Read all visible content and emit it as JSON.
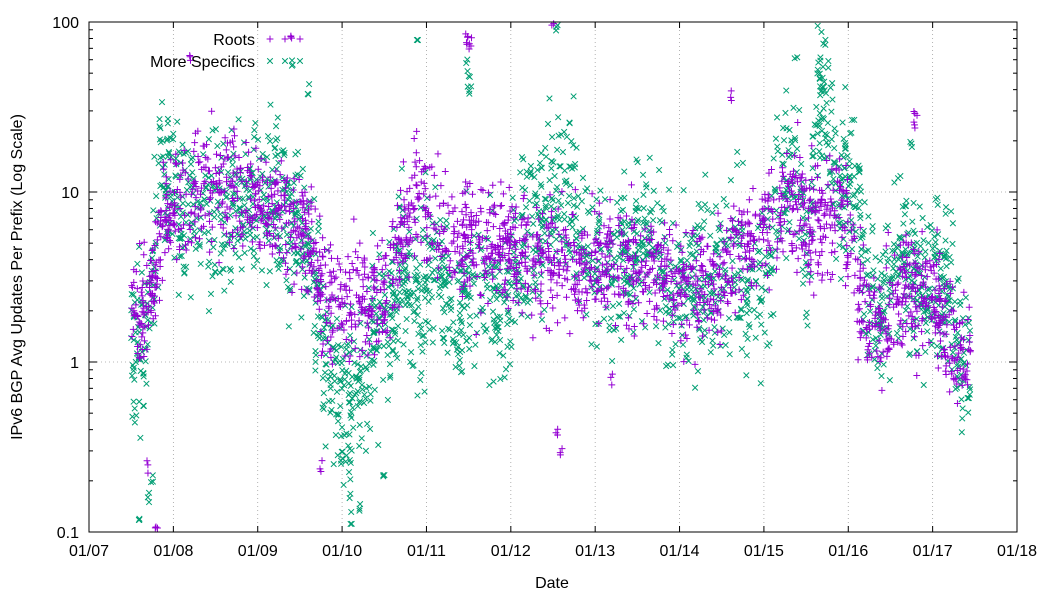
{
  "chart_data": {
    "type": "scatter",
    "title": "",
    "xlabel": "Date",
    "ylabel": "IPv6 BGP Avg Updates Per Prefix (Log Scale)",
    "yscale": "log",
    "xlim": [
      2007,
      2018
    ],
    "ylim": [
      0.1,
      100
    ],
    "x_ticks": [
      {
        "value": 2007,
        "label": "01/07"
      },
      {
        "value": 2008,
        "label": "01/08"
      },
      {
        "value": 2009,
        "label": "01/09"
      },
      {
        "value": 2010,
        "label": "01/10"
      },
      {
        "value": 2011,
        "label": "01/11"
      },
      {
        "value": 2012,
        "label": "01/12"
      },
      {
        "value": 2013,
        "label": "01/13"
      },
      {
        "value": 2014,
        "label": "01/14"
      },
      {
        "value": 2015,
        "label": "01/15"
      },
      {
        "value": 2016,
        "label": "01/16"
      },
      {
        "value": 2017,
        "label": "01/17"
      },
      {
        "value": 2018,
        "label": "01/18"
      }
    ],
    "y_ticks": [
      {
        "value": 0.1,
        "label": "0.1"
      },
      {
        "value": 1,
        "label": "1"
      },
      {
        "value": 10,
        "label": "10"
      },
      {
        "value": 100,
        "label": "100"
      }
    ],
    "grid": true,
    "legend_position": "top-left",
    "series": [
      {
        "name": "Roots",
        "marker": "plus",
        "color": "#9400d3",
        "trend": [
          [
            2007.5,
            2.2
          ],
          [
            2007.7,
            1.8
          ],
          [
            2007.85,
            6.0
          ],
          [
            2008.1,
            9.0
          ],
          [
            2008.4,
            10.0
          ],
          [
            2008.7,
            11.0
          ],
          [
            2009.0,
            9.0
          ],
          [
            2009.3,
            7.0
          ],
          [
            2009.6,
            5.0
          ],
          [
            2009.75,
            3.0
          ],
          [
            2009.9,
            2.2
          ],
          [
            2010.2,
            2.3
          ],
          [
            2010.5,
            2.5
          ],
          [
            2010.7,
            5.0
          ],
          [
            2010.9,
            10.0
          ],
          [
            2011.1,
            7.0
          ],
          [
            2011.4,
            5.0
          ],
          [
            2011.7,
            5.0
          ],
          [
            2012.0,
            5.0
          ],
          [
            2012.3,
            4.0
          ],
          [
            2012.6,
            3.6
          ],
          [
            2012.9,
            3.6
          ],
          [
            2013.2,
            3.8
          ],
          [
            2013.5,
            3.8
          ],
          [
            2013.8,
            3.6
          ],
          [
            2014.0,
            3.0
          ],
          [
            2014.3,
            2.8
          ],
          [
            2014.5,
            3.0
          ],
          [
            2014.7,
            5.0
          ],
          [
            2014.9,
            6.0
          ],
          [
            2015.1,
            7.0
          ],
          [
            2015.3,
            10.0
          ],
          [
            2015.5,
            7.0
          ],
          [
            2015.7,
            6.0
          ],
          [
            2015.9,
            9.0
          ],
          [
            2016.1,
            3.0
          ],
          [
            2016.3,
            1.8
          ],
          [
            2016.5,
            1.8
          ],
          [
            2016.7,
            3.0
          ],
          [
            2016.9,
            2.5
          ],
          [
            2017.1,
            1.8
          ],
          [
            2017.3,
            1.2
          ],
          [
            2017.45,
            1.2
          ]
        ],
        "outliers": [
          [
            2009.4,
            80
          ],
          [
            2011.5,
            80
          ],
          [
            2011.52,
            75
          ],
          [
            2011.48,
            78
          ],
          [
            2012.5,
            98
          ],
          [
            2012.55,
            0.4
          ],
          [
            2012.6,
            0.3
          ],
          [
            2007.8,
            0.1
          ],
          [
            2007.7,
            0.24
          ],
          [
            2008.2,
            60
          ],
          [
            2014.6,
            37
          ],
          [
            2016.78,
            28
          ],
          [
            2016.8,
            26
          ],
          [
            2009.75,
            0.24
          ],
          [
            2013.2,
            0.8
          ]
        ]
      },
      {
        "name": "More Specifics",
        "marker": "cross",
        "color": "#009e73",
        "trend": [
          [
            2007.5,
            1.5
          ],
          [
            2007.7,
            1.2
          ],
          [
            2007.85,
            14.0
          ],
          [
            2008.1,
            8.0
          ],
          [
            2008.4,
            7.0
          ],
          [
            2008.7,
            8.0
          ],
          [
            2009.0,
            8.0
          ],
          [
            2009.3,
            8.0
          ],
          [
            2009.6,
            4.0
          ],
          [
            2009.75,
            2.0
          ],
          [
            2009.9,
            0.7
          ],
          [
            2010.1,
            0.6
          ],
          [
            2010.3,
            1.0
          ],
          [
            2010.5,
            1.5
          ],
          [
            2010.7,
            4.0
          ],
          [
            2010.9,
            2.0
          ],
          [
            2011.1,
            5.0
          ],
          [
            2011.3,
            2.0
          ],
          [
            2011.6,
            3.0
          ],
          [
            2011.9,
            2.0
          ],
          [
            2012.2,
            5.0
          ],
          [
            2012.5,
            8.0
          ],
          [
            2012.7,
            12.0
          ],
          [
            2012.9,
            4.0
          ],
          [
            2013.2,
            3.5
          ],
          [
            2013.5,
            5.0
          ],
          [
            2013.7,
            6.0
          ],
          [
            2013.9,
            2.0
          ],
          [
            2014.1,
            3.0
          ],
          [
            2014.4,
            2.5
          ],
          [
            2014.6,
            4.0
          ],
          [
            2014.8,
            3.0
          ],
          [
            2015.0,
            3.0
          ],
          [
            2015.2,
            12.0
          ],
          [
            2015.4,
            18.0
          ],
          [
            2015.5,
            3.0
          ],
          [
            2015.65,
            45.0
          ],
          [
            2015.75,
            30.0
          ],
          [
            2015.9,
            10.0
          ],
          [
            2016.1,
            12.0
          ],
          [
            2016.2,
            3.0
          ],
          [
            2016.4,
            2.0
          ],
          [
            2016.6,
            5.0
          ],
          [
            2016.8,
            3.0
          ],
          [
            2017.0,
            3.0
          ],
          [
            2017.2,
            2.5
          ],
          [
            2017.35,
            0.8
          ],
          [
            2017.45,
            1.2
          ]
        ],
        "outliers": [
          [
            2010.9,
            72
          ],
          [
            2011.5,
            45
          ],
          [
            2011.52,
            40
          ],
          [
            2011.48,
            55
          ],
          [
            2007.6,
            0.12
          ],
          [
            2007.7,
            0.16
          ],
          [
            2007.75,
            0.2
          ],
          [
            2010.1,
            0.12
          ],
          [
            2010.2,
            0.14
          ],
          [
            2010.5,
            0.2
          ],
          [
            2012.55,
            90
          ],
          [
            2009.4,
            60
          ],
          [
            2009.6,
            40
          ],
          [
            2015.65,
            47
          ],
          [
            2015.7,
            44
          ],
          [
            2017.05,
            9
          ],
          [
            2016.75,
            20
          ]
        ]
      }
    ]
  }
}
